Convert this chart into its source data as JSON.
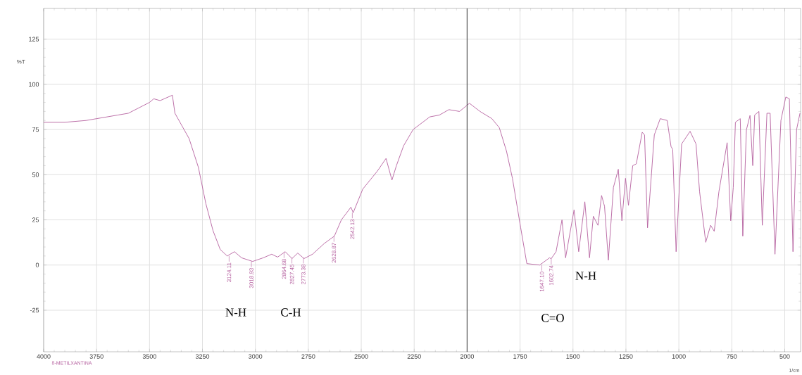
{
  "chart_data": {
    "type": "line",
    "xlabel": "1/cm",
    "ylabel": "%T",
    "x": [
      4000,
      3900,
      3800,
      3750,
      3650,
      3600,
      3550,
      3500,
      3480,
      3450,
      3392,
      3380,
      3313,
      3269,
      3234,
      3200,
      3166,
      3133,
      3099,
      3065,
      3013,
      2963,
      2923,
      2895,
      2859,
      2827,
      2800,
      2770,
      2730,
      2674,
      2627,
      2594,
      2549,
      2538,
      2493,
      2424,
      2383,
      2355,
      2334,
      2300,
      2255,
      2176,
      2131,
      2086,
      2036,
      1989,
      1939,
      1883,
      1848,
      1814,
      1786,
      1747,
      1718,
      1657,
      1611,
      1603,
      1580,
      1552,
      1535,
      1495,
      1473,
      1444,
      1422,
      1404,
      1382,
      1365,
      1351,
      1333,
      1309,
      1286,
      1269,
      1252,
      1238,
      1218,
      1201,
      1173,
      1162,
      1148,
      1116,
      1088,
      1055,
      1037,
      1029,
      1013,
      987,
      947,
      919,
      902,
      873,
      850,
      833,
      811,
      772,
      755,
      743,
      733,
      710,
      698,
      681,
      664,
      651,
      642,
      622,
      606,
      584,
      569,
      546,
      518,
      495,
      478,
      461,
      444,
      428
    ],
    "series": [
      {
        "color": "#b5609f",
        "values": [
          79,
          79,
          80,
          81,
          83,
          84,
          87,
          90,
          92,
          91,
          94,
          84,
          70,
          54,
          34,
          19,
          8.6,
          5,
          7.4,
          4,
          2,
          4,
          6,
          4.4,
          7.4,
          3.6,
          6.6,
          3.6,
          6,
          12,
          16,
          25,
          32,
          29,
          42,
          52,
          59,
          47,
          55,
          66,
          75,
          82,
          83,
          86,
          85,
          89.5,
          85,
          81,
          76,
          63,
          48,
          20.6,
          0.8,
          0,
          4,
          3.5,
          7.4,
          25,
          4,
          30.5,
          7.4,
          35,
          4,
          27,
          22,
          38.5,
          32.5,
          2.7,
          43,
          53,
          24.5,
          48,
          33,
          55,
          56,
          73.5,
          72,
          20.6,
          72,
          81,
          80,
          65.6,
          64,
          7.4,
          67,
          74,
          67,
          40.5,
          12.6,
          22,
          18.7,
          40.5,
          67.7,
          24.5,
          43,
          79,
          81,
          16,
          74.8,
          82.8,
          55,
          83,
          85,
          22,
          84,
          84,
          6,
          80,
          93,
          92,
          7.4,
          75,
          84
        ]
      }
    ],
    "xlim": [
      4000,
      425
    ],
    "ylim": [
      -48,
      142
    ],
    "xticks": [
      4000,
      3750,
      3500,
      3250,
      3000,
      2750,
      2500,
      2250,
      2000,
      1750,
      1500,
      1250,
      1000,
      750,
      500
    ],
    "yticks": [
      -25,
      0,
      25,
      50,
      75,
      100,
      125
    ],
    "grid": true,
    "marker": "none",
    "line_style": "solid",
    "ref_lines": [
      {
        "axis": "x",
        "value": 2000,
        "color": "#555555"
      }
    ],
    "annotations": [
      "8-METILXANTINA",
      "N-H",
      "C-H",
      "C=O",
      "N-H",
      {
        "text": "3124.11",
        "x": 3124.11,
        "y": 5
      },
      {
        "text": "3018.93",
        "x": 3018.93,
        "y": 2
      },
      {
        "text": "2864.68",
        "x": 2864.68,
        "y": 7
      },
      {
        "text": "2827.45",
        "x": 2827.45,
        "y": 4
      },
      {
        "text": "2773.38",
        "x": 2773.38,
        "y": 4
      },
      {
        "text": "2628.87",
        "x": 2628.87,
        "y": 16
      },
      {
        "text": "2542.13",
        "x": 2542.13,
        "y": 29
      },
      {
        "text": "1647.10",
        "x": 1647.1,
        "y": 0
      },
      {
        "text": "1602.74",
        "x": 1602.74,
        "y": 3.5
      }
    ]
  }
}
